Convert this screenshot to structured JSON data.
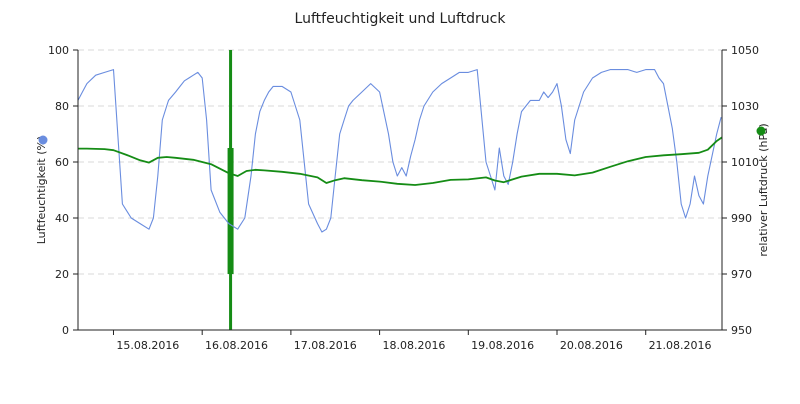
{
  "chart_data": {
    "type": "line",
    "title": "Luftfeuchtigkeit und Luftdruck",
    "x_categories": [
      "15.08.2016",
      "16.08.2016",
      "17.08.2016",
      "18.08.2016",
      "19.08.2016",
      "20.08.2016",
      "21.08.2016"
    ],
    "x_range_days": [
      14.6,
      21.86
    ],
    "y_left": {
      "label": "Luftfeuchtigkeit (%)",
      "range": [
        0,
        100
      ],
      "ticks": [
        0,
        20,
        40,
        60,
        80,
        100
      ],
      "tick_labels": [
        "0",
        "20",
        "40",
        "60",
        "80",
        "100"
      ]
    },
    "y_right": {
      "label": "relativer Luftdruck (hPa)",
      "range": [
        950,
        1050
      ],
      "ticks": [
        950,
        970,
        990,
        1010,
        1030,
        1050
      ],
      "tick_labels": [
        "950",
        "970",
        "990",
        "1010",
        "1030",
        "1050"
      ]
    },
    "grid": true,
    "legend_placement": "axis-ends",
    "series": [
      {
        "axis": "left",
        "color": "#6a8ddf",
        "marker": "blue-dot",
        "x": [
          14.6,
          14.65,
          14.7,
          14.8,
          14.9,
          15.0,
          15.1,
          15.2,
          15.3,
          15.4,
          15.45,
          15.5,
          15.55,
          15.6,
          15.62,
          15.7,
          15.75,
          15.8,
          15.85,
          15.9,
          15.95,
          16.0,
          16.05,
          16.1,
          16.2,
          16.3,
          16.4,
          16.42,
          16.48,
          16.55,
          16.6,
          16.65,
          16.7,
          16.75,
          16.8,
          16.9,
          17.0,
          17.1,
          17.2,
          17.3,
          17.35,
          17.4,
          17.45,
          17.5,
          17.55,
          17.6,
          17.65,
          17.7,
          17.8,
          17.9,
          18.0,
          18.1,
          18.15,
          18.2,
          18.25,
          18.3,
          18.35,
          18.4,
          18.45,
          18.5,
          18.6,
          18.7,
          18.8,
          18.9,
          19.0,
          19.1,
          19.2,
          19.25,
          19.3,
          19.35,
          19.4,
          19.45,
          19.5,
          19.55,
          19.6,
          19.7,
          19.8,
          19.85,
          19.9,
          19.95,
          20.0,
          20.05,
          20.1,
          20.15,
          20.2,
          20.3,
          20.4,
          20.5,
          20.6,
          20.7,
          20.8,
          20.9,
          21.0,
          21.1,
          21.15,
          21.2,
          21.25,
          21.3,
          21.35,
          21.4,
          21.45,
          21.5,
          21.55,
          21.6,
          21.65,
          21.7,
          21.8,
          21.85
        ],
        "y": [
          82,
          85,
          88,
          91,
          92,
          93,
          45,
          40,
          38,
          36,
          40,
          55,
          75,
          80,
          82,
          85,
          87,
          89,
          90,
          91,
          92,
          90,
          75,
          50,
          42,
          38,
          36,
          37,
          40,
          55,
          70,
          78,
          82,
          85,
          87,
          87,
          85,
          75,
          45,
          38,
          35,
          36,
          40,
          55,
          70,
          75,
          80,
          82,
          85,
          88,
          85,
          70,
          60,
          55,
          58,
          55,
          62,
          68,
          75,
          80,
          85,
          88,
          90,
          92,
          92,
          93,
          60,
          55,
          50,
          65,
          55,
          52,
          60,
          70,
          78,
          82,
          82,
          85,
          83,
          85,
          88,
          80,
          68,
          63,
          75,
          85,
          90,
          92,
          93,
          93,
          93,
          92,
          93,
          93,
          90,
          88,
          80,
          72,
          60,
          45,
          40,
          45,
          55,
          48,
          45,
          55,
          70,
          76
        ]
      },
      {
        "axis": "right",
        "color": "#158c15",
        "marker": "green-dot",
        "x": [
          14.6,
          14.7,
          14.9,
          15.0,
          15.15,
          15.3,
          15.4,
          15.5,
          15.6,
          15.7,
          15.9,
          16.1,
          16.3,
          16.4,
          16.5,
          16.6,
          16.7,
          16.9,
          17.1,
          17.3,
          17.4,
          17.5,
          17.6,
          17.8,
          18.0,
          18.2,
          18.4,
          18.6,
          18.8,
          19.0,
          19.2,
          19.3,
          19.4,
          19.5,
          19.6,
          19.8,
          20.0,
          20.2,
          20.4,
          20.6,
          20.8,
          21.0,
          21.2,
          21.4,
          21.6,
          21.7,
          21.8,
          21.86
        ],
        "y": [
          1014.8,
          1014.8,
          1014.6,
          1014.2,
          1012.5,
          1010.6,
          1009.8,
          1011.5,
          1011.8,
          1011.5,
          1010.8,
          1009.2,
          1006.0,
          1005.0,
          1006.8,
          1007.2,
          1007.0,
          1006.5,
          1005.8,
          1004.5,
          1002.5,
          1003.5,
          1004.2,
          1003.5,
          1003.0,
          1002.2,
          1001.8,
          1002.5,
          1003.6,
          1003.8,
          1004.5,
          1003.4,
          1002.8,
          1003.8,
          1004.8,
          1005.8,
          1005.8,
          1005.2,
          1006.2,
          1008.3,
          1010.3,
          1011.8,
          1012.4,
          1012.8,
          1013.3,
          1014.4,
          1017.5,
          1018.8
        ]
      }
    ],
    "annotations": [
      {
        "type": "vertical-band",
        "color": "#158c15",
        "x": 16.32,
        "left_axis_span": [
          0,
          100
        ],
        "right_axis_span": [
          970,
          1015
        ]
      }
    ]
  }
}
